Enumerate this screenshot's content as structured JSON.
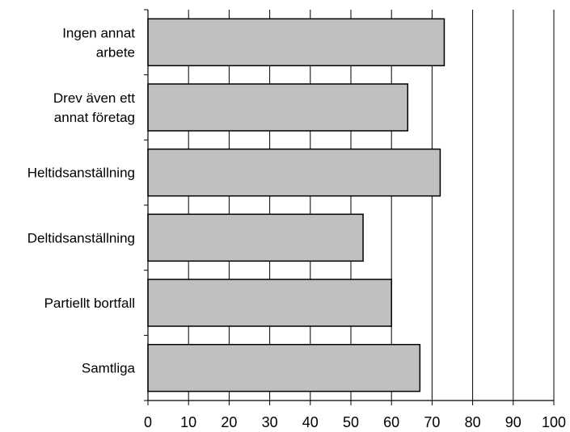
{
  "chart_data": {
    "type": "bar",
    "orientation": "horizontal",
    "categories": [
      [
        "Ingen annat",
        "arbete"
      ],
      [
        "Drev även ett",
        "annat företag"
      ],
      [
        "Heltidsanställning"
      ],
      [
        "Deltidsanställning"
      ],
      [
        "Partiellt bortfall"
      ],
      [
        "Samtliga"
      ]
    ],
    "values": [
      73,
      64,
      72,
      53,
      60,
      67
    ],
    "xlim": [
      0,
      100
    ],
    "xticks": [
      0,
      10,
      20,
      30,
      40,
      50,
      60,
      70,
      80,
      90,
      100
    ],
    "grid": "vertical",
    "bar_color": "#c0c0c0",
    "title": "",
    "xlabel": "",
    "ylabel": ""
  }
}
